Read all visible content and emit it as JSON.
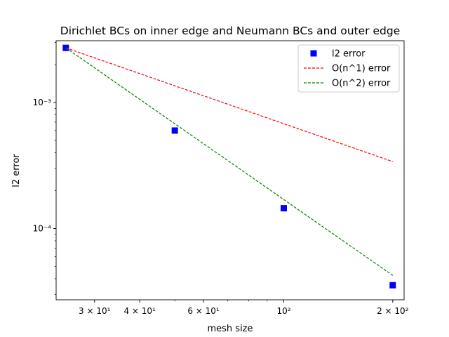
{
  "chart_data": {
    "type": "scatter",
    "title": "Dirichlet BCs on inner edge and Neumann BCs and outer edge",
    "xlabel": "mesh size",
    "ylabel": "l2 error",
    "xscale": "log",
    "yscale": "log",
    "xlim": [
      23.5,
      215
    ],
    "ylim": [
      2.72e-05,
      0.0031
    ],
    "grid": false,
    "legend_position": "top-right",
    "x_ticks": [
      {
        "value": 30,
        "label": "3 × 10¹"
      },
      {
        "value": 40,
        "label": "4 × 10¹"
      },
      {
        "value": 60,
        "label": "6 × 10¹"
      },
      {
        "value": 100,
        "label": "10²"
      },
      {
        "value": 200,
        "label": "2 × 10²"
      }
    ],
    "y_ticks": [
      {
        "value": 0.001,
        "label": "10⁻³"
      },
      {
        "value": 0.0001,
        "label": "10⁻⁴"
      }
    ],
    "series": [
      {
        "name": "l2 error",
        "style": "marker",
        "marker": "square",
        "color": "#0000ff",
        "x": [
          25,
          50,
          100,
          200
        ],
        "y": [
          0.00272,
          0.0006,
          0.000145,
          3.55e-05
        ]
      },
      {
        "name": "O(n^1) error",
        "style": "dashed",
        "color": "#ff0000",
        "x": [
          25,
          200
        ],
        "y": [
          0.00272,
          0.00034
        ]
      },
      {
        "name": "O(n^2) error",
        "style": "dashed",
        "color": "#008000",
        "x": [
          25,
          200
        ],
        "y": [
          0.00272,
          4.25e-05
        ]
      }
    ]
  }
}
